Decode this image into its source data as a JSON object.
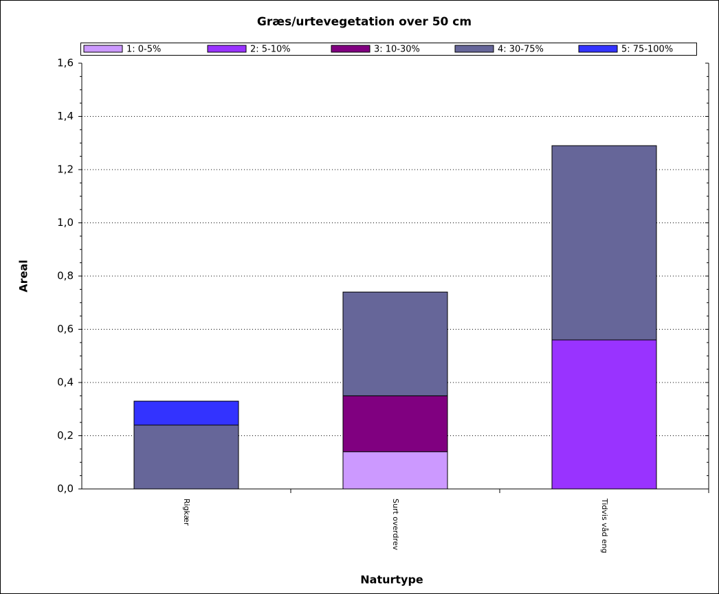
{
  "chart_data": {
    "type": "stacked-bar",
    "title": "Græs/urtevegetation over 50 cm",
    "x_label": "Naturtype",
    "y_label": "Areal",
    "categories": [
      "Rigkær",
      "Surt overdrev",
      "Tidvis våd eng"
    ],
    "series": [
      {
        "name": "1: 0-5%",
        "color": "#cc99ff",
        "values": [
          null,
          0.14,
          null
        ]
      },
      {
        "name": "2: 5-10%",
        "color": "#9933ff",
        "values": [
          null,
          null,
          0.56
        ]
      },
      {
        "name": "3: 10-30%",
        "color": "#800080",
        "values": [
          null,
          0.21,
          null
        ]
      },
      {
        "name": "4: 30-75%",
        "color": "#666699",
        "values": [
          0.24,
          0.39,
          0.73
        ]
      },
      {
        "name": "5: 75-100%",
        "color": "#3333ff",
        "values": [
          0.09,
          null,
          null
        ]
      }
    ],
    "ylim": [
      0,
      1.6
    ],
    "yticks": [
      {
        "value": 0,
        "label": "0,0"
      },
      {
        "value": 0.2,
        "label": "0,2"
      },
      {
        "value": 0.4,
        "label": "0,4"
      },
      {
        "value": 0.6,
        "label": "0,6"
      },
      {
        "value": 0.8,
        "label": "0,8"
      },
      {
        "value": 1.0,
        "label": "1,0"
      },
      {
        "value": 1.2,
        "label": "1,2"
      },
      {
        "value": 1.4,
        "label": "1,4"
      },
      {
        "value": 1.6,
        "label": "1,6"
      }
    ],
    "grid": true,
    "legend": "top"
  }
}
